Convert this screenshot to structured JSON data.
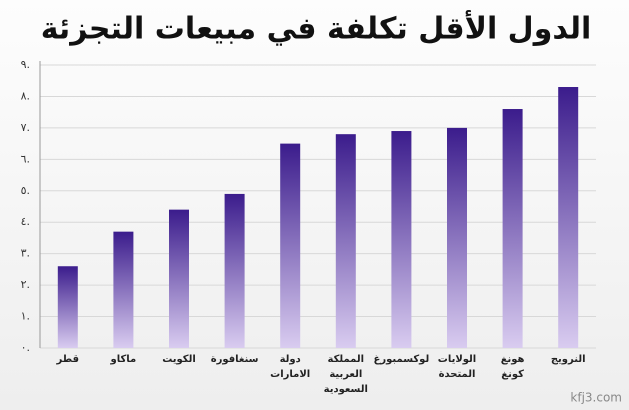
{
  "chart_data": {
    "type": "bar",
    "title": "الدول الأقل تكلفة في مبيعات التجزئة",
    "categories": [
      "قطر",
      "ماكاو",
      "الكويت",
      "سنغافورة",
      "دولة\nالامارات",
      "المملكة\nالعربية\nالسعودية",
      "لوكسمبورغ",
      "الولايات\nالمتحدة",
      "هونغ\nكونغ",
      "النرويج"
    ],
    "values": [
      2.6,
      3.7,
      4.4,
      4.9,
      6.5,
      6.8,
      6.9,
      7.0,
      7.6,
      8.3
    ],
    "color": "#3b1c8c",
    "ylim": [
      0,
      9
    ],
    "yticks": [
      {
        "value": 0,
        "label": "٠."
      },
      {
        "value": 1,
        "label": "١."
      },
      {
        "value": 2,
        "label": "٢."
      },
      {
        "value": 3,
        "label": "٣."
      },
      {
        "value": 4,
        "label": "٤."
      },
      {
        "value": 5,
        "label": "٥."
      },
      {
        "value": 6,
        "label": "٦."
      },
      {
        "value": 7,
        "label": "٧."
      },
      {
        "value": 8,
        "label": "٨."
      },
      {
        "value": 9,
        "label": "٩."
      }
    ],
    "grid": true
  },
  "watermark": "kfj3.com"
}
